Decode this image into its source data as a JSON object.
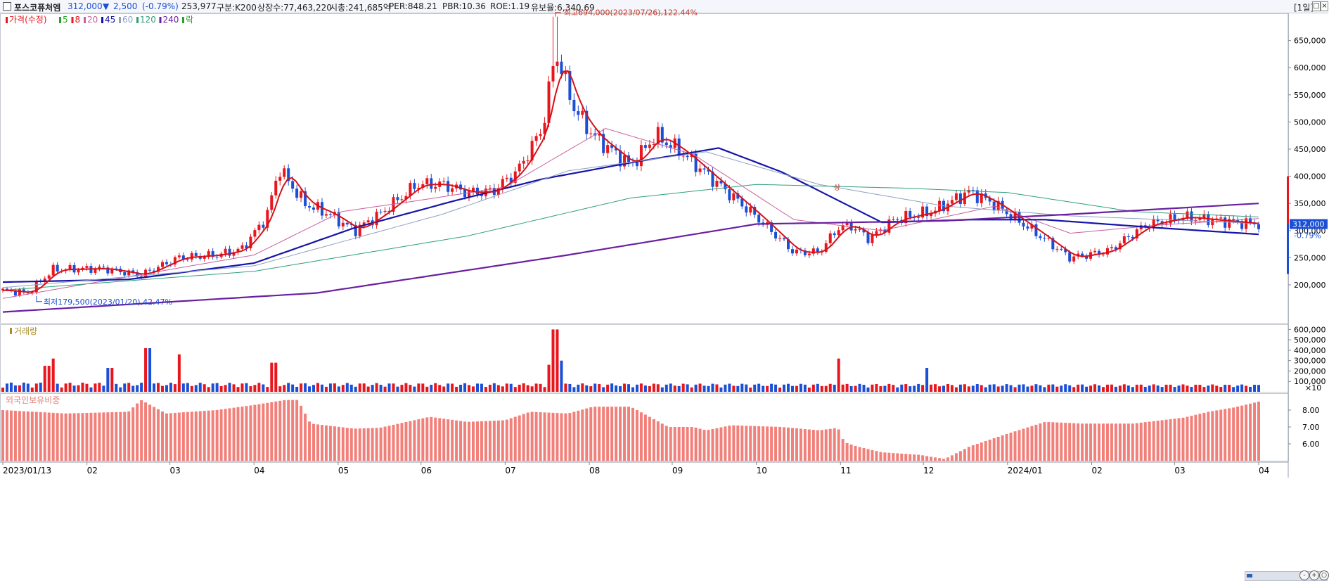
{
  "header": {
    "stock_name": "포스코퓨처엠",
    "price": "312,000",
    "change_arrow": "▼",
    "change": "2,500",
    "change_pct": "(-0.79%)",
    "volume": "253,977",
    "category": "구분:K200",
    "listed_shares": "상장수:77,463,220",
    "market_cap": "시총:241,685억",
    "per": "PER:848.21",
    "pbr": "PBR:10.36",
    "roe": "ROE:1.19",
    "float": "유보율:6,340.69",
    "period": "[1일]",
    "colors": {
      "up": "#e8161d",
      "down": "#1a4fd6",
      "navy": "#0b2a8a"
    }
  },
  "price_panel": {
    "legend": [
      {
        "label": "가격(수정)",
        "color": "#e8161d"
      },
      {
        "label": "5",
        "color": "#2aa02a"
      },
      {
        "label": "8",
        "color": "#e8161d"
      },
      {
        "label": "20",
        "color": "#c9609d"
      },
      {
        "label": "45",
        "color": "#1414a8"
      },
      {
        "label": "60",
        "color": "#8f9fc4"
      },
      {
        "label": "120",
        "color": "#2ea07a"
      },
      {
        "label": "240",
        "color": "#6a1fa0"
      },
      {
        "label": "락",
        "color": "#2aa02a"
      }
    ],
    "high_annotation": "최고694,000(2023/07/26),122.44%",
    "low_annotation": "최저179,500(2023/01/20),42.47%",
    "marker": "상",
    "current_tag": "312,000",
    "current_pct": "-0.79%"
  },
  "volume_panel": {
    "title": "거래량",
    "unit": "×10"
  },
  "foreign_panel": {
    "title": "외국인보유비중"
  },
  "x_axis": {
    "ticks": [
      {
        "label": "2023/01/13",
        "x": 0
      },
      {
        "label": "02",
        "x": 0.067
      },
      {
        "label": "03",
        "x": 0.133
      },
      {
        "label": "04",
        "x": 0.2
      },
      {
        "label": "05",
        "x": 0.267
      },
      {
        "label": "06",
        "x": 0.333
      },
      {
        "label": "07",
        "x": 0.4
      },
      {
        "label": "08",
        "x": 0.467
      },
      {
        "label": "09",
        "x": 0.533
      },
      {
        "label": "10",
        "x": 0.6
      },
      {
        "label": "11",
        "x": 0.667
      },
      {
        "label": "12",
        "x": 0.733
      },
      {
        "label": "2024/01",
        "x": 0.8
      },
      {
        "label": "02",
        "x": 0.867
      },
      {
        "label": "03",
        "x": 0.933
      },
      {
        "label": "04",
        "x": 1
      }
    ]
  },
  "chart_data": [
    {
      "type": "candlestick",
      "title": "가격(수정)",
      "ylim": [
        130000,
        700000
      ],
      "yticks": [
        200000,
        250000,
        300000,
        350000,
        400000,
        450000,
        500000,
        550000,
        600000,
        650000
      ],
      "ytick_labels": [
        "200,000",
        "250,000",
        "300,000",
        "350,000",
        "400,000",
        "450,000",
        "500,000",
        "550,000",
        "600,000",
        "650,000"
      ],
      "close_keypoints": [
        [
          0,
          190000
        ],
        [
          0.02,
          185000
        ],
        [
          0.04,
          228000
        ],
        [
          0.08,
          230000
        ],
        [
          0.11,
          218000
        ],
        [
          0.14,
          250000
        ],
        [
          0.17,
          255000
        ],
        [
          0.19,
          265000
        ],
        [
          0.21,
          325000
        ],
        [
          0.22,
          415000
        ],
        [
          0.24,
          350000
        ],
        [
          0.26,
          330000
        ],
        [
          0.28,
          300000
        ],
        [
          0.3,
          330000
        ],
        [
          0.33,
          385000
        ],
        [
          0.35,
          385000
        ],
        [
          0.37,
          370000
        ],
        [
          0.39,
          372000
        ],
        [
          0.41,
          410000
        ],
        [
          0.43,
          490000
        ],
        [
          0.44,
          630000
        ],
        [
          0.455,
          525000
        ],
        [
          0.47,
          475000
        ],
        [
          0.5,
          420000
        ],
        [
          0.52,
          475000
        ],
        [
          0.54,
          445000
        ],
        [
          0.57,
          385000
        ],
        [
          0.6,
          325000
        ],
        [
          0.63,
          260000
        ],
        [
          0.65,
          260000
        ],
        [
          0.665,
          305000
        ],
        [
          0.675,
          310000
        ],
        [
          0.69,
          285000
        ],
        [
          0.71,
          320000
        ],
        [
          0.74,
          335000
        ],
        [
          0.77,
          372000
        ],
        [
          0.79,
          348000
        ],
        [
          0.82,
          300000
        ],
        [
          0.85,
          250000
        ],
        [
          0.88,
          262000
        ],
        [
          0.91,
          310000
        ],
        [
          0.94,
          325000
        ],
        [
          0.97,
          318000
        ],
        [
          1.0,
          312000
        ]
      ],
      "ma_keypoints": {
        "20": [
          [
            0,
            175000
          ],
          [
            0.1,
            215000
          ],
          [
            0.2,
            255000
          ],
          [
            0.27,
            335000
          ],
          [
            0.33,
            355000
          ],
          [
            0.4,
            380000
          ],
          [
            0.48,
            488000
          ],
          [
            0.55,
            440000
          ],
          [
            0.63,
            320000
          ],
          [
            0.7,
            300000
          ],
          [
            0.79,
            345000
          ],
          [
            0.85,
            295000
          ],
          [
            0.92,
            310000
          ],
          [
            1.0,
            322000
          ]
        ],
        "45": [
          [
            0,
            205000
          ],
          [
            0.1,
            210000
          ],
          [
            0.2,
            240000
          ],
          [
            0.28,
            305000
          ],
          [
            0.36,
            355000
          ],
          [
            0.43,
            395000
          ],
          [
            0.5,
            425000
          ],
          [
            0.57,
            452000
          ],
          [
            0.62,
            408000
          ],
          [
            0.7,
            315000
          ],
          [
            0.77,
            320000
          ],
          [
            0.83,
            320000
          ],
          [
            0.92,
            305000
          ],
          [
            1.0,
            293000
          ]
        ],
        "60": [
          [
            0,
            195000
          ],
          [
            0.2,
            235000
          ],
          [
            0.35,
            330000
          ],
          [
            0.45,
            410000
          ],
          [
            0.56,
            445000
          ],
          [
            0.65,
            385000
          ],
          [
            0.75,
            345000
          ],
          [
            0.85,
            327000
          ],
          [
            1.0,
            313000
          ]
        ],
        "120": [
          [
            0,
            190000
          ],
          [
            0.2,
            225000
          ],
          [
            0.37,
            290000
          ],
          [
            0.5,
            360000
          ],
          [
            0.6,
            385000
          ],
          [
            0.72,
            378000
          ],
          [
            0.8,
            370000
          ],
          [
            0.9,
            335000
          ],
          [
            1.0,
            325000
          ]
        ],
        "240": [
          [
            0,
            150000
          ],
          [
            0.25,
            185000
          ],
          [
            0.45,
            255000
          ],
          [
            0.6,
            312000
          ],
          [
            0.75,
            318000
          ],
          [
            0.85,
            330000
          ],
          [
            1.0,
            350000
          ]
        ]
      }
    },
    {
      "type": "bar",
      "title": "거래량",
      "unit": "×10",
      "ylim": [
        0,
        650000
      ],
      "yticks": [
        100000,
        200000,
        300000,
        400000,
        500000,
        600000
      ],
      "ytick_labels": [
        "100,000",
        "200,000",
        "300,000",
        "400,000",
        "500,000",
        "600,000"
      ],
      "peaks": [
        {
          "x": 0.035,
          "value": 250000
        },
        {
          "x": 0.04,
          "value": 320000
        },
        {
          "x": 0.085,
          "value": 230000
        },
        {
          "x": 0.115,
          "value": 420000
        },
        {
          "x": 0.14,
          "value": 360000
        },
        {
          "x": 0.215,
          "value": 280000
        },
        {
          "x": 0.435,
          "value": 260000
        },
        {
          "x": 0.44,
          "value": 600000
        },
        {
          "x": 0.445,
          "value": 300000
        },
        {
          "x": 0.665,
          "value": 320000
        },
        {
          "x": 0.735,
          "value": 230000
        }
      ]
    },
    {
      "type": "bar",
      "title": "외국인보유비중",
      "ylim": [
        5.0,
        9.0
      ],
      "yticks": [
        6.0,
        7.0,
        8.0
      ],
      "ytick_labels": [
        "6.00",
        "7.00",
        "8.00"
      ],
      "keypoints": [
        [
          0,
          8.0
        ],
        [
          0.05,
          7.8
        ],
        [
          0.1,
          7.9
        ],
        [
          0.11,
          8.6
        ],
        [
          0.13,
          7.8
        ],
        [
          0.17,
          8.0
        ],
        [
          0.2,
          8.3
        ],
        [
          0.225,
          8.6
        ],
        [
          0.235,
          8.6
        ],
        [
          0.245,
          7.2
        ],
        [
          0.28,
          6.9
        ],
        [
          0.3,
          6.95
        ],
        [
          0.34,
          7.6
        ],
        [
          0.37,
          7.3
        ],
        [
          0.4,
          7.4
        ],
        [
          0.42,
          7.9
        ],
        [
          0.45,
          7.8
        ],
        [
          0.47,
          8.2
        ],
        [
          0.5,
          8.2
        ],
        [
          0.53,
          7.0
        ],
        [
          0.55,
          7.0
        ],
        [
          0.56,
          6.8
        ],
        [
          0.58,
          7.1
        ],
        [
          0.62,
          7.0
        ],
        [
          0.65,
          6.8
        ],
        [
          0.665,
          6.95
        ],
        [
          0.67,
          6.1
        ],
        [
          0.68,
          5.85
        ],
        [
          0.7,
          5.5
        ],
        [
          0.73,
          5.35
        ],
        [
          0.75,
          5.1
        ],
        [
          0.77,
          5.85
        ],
        [
          0.8,
          6.6
        ],
        [
          0.83,
          7.3
        ],
        [
          0.86,
          7.2
        ],
        [
          0.9,
          7.2
        ],
        [
          0.94,
          7.55
        ],
        [
          0.96,
          7.9
        ],
        [
          0.98,
          8.15
        ],
        [
          1.0,
          8.5
        ]
      ]
    }
  ]
}
